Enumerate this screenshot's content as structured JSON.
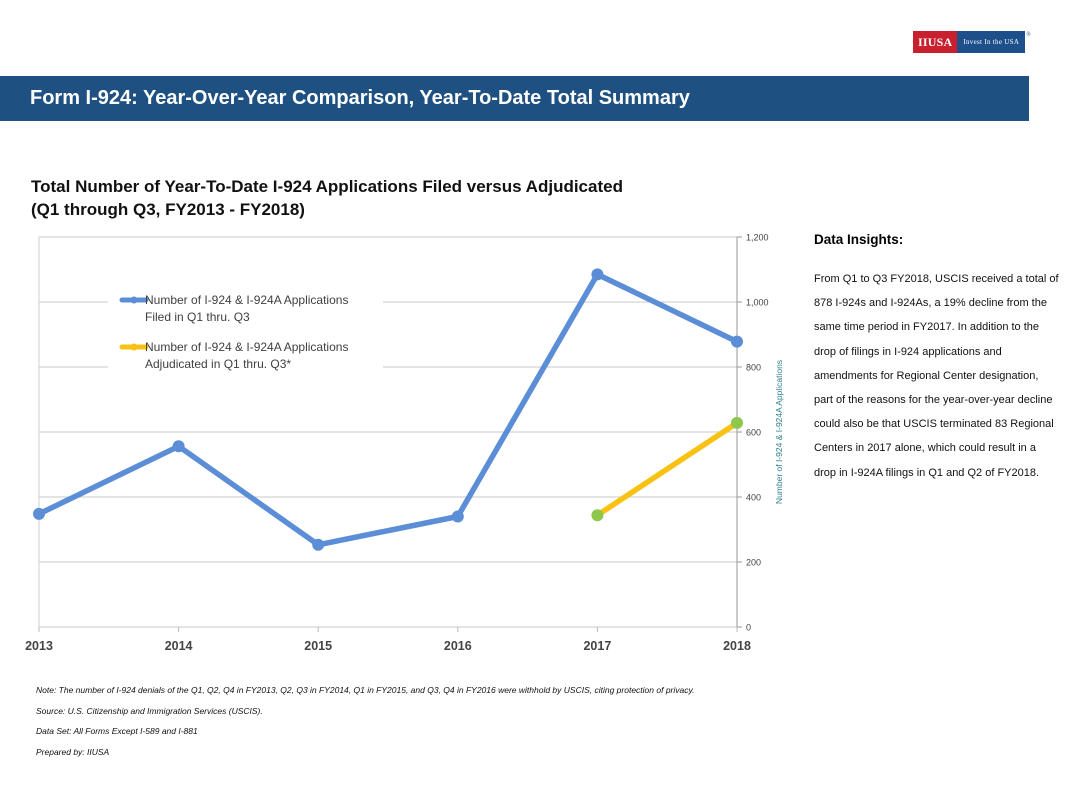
{
  "logo": {
    "mark": "IIUSA",
    "tagline": "Invest In the USA",
    "reg": "®"
  },
  "banner": {
    "title": "Form I-924: Year-Over-Year Comparison, Year-To-Date Total Summary"
  },
  "chart_heading": {
    "line1": "Total Number of Year-To-Date I-924 Applications Filed versus Adjudicated",
    "line2": "(Q1 through Q3, FY2013 - FY2018)"
  },
  "insights": {
    "heading": "Data Insights:",
    "body": "From Q1 to Q3 FY2018, USCIS received a total of 878 I-924s and I-924As, a 19% decline from the same time period in FY2017. In addition to the drop of filings in I-924 applications and amendments for Regional Center designation, part of the reasons for the year-over-year decline could also be that USCIS terminated 83 Regional Centers in 2017 alone, which could result in a drop in I-924A filings in Q1 and Q2 of FY2018."
  },
  "notes": {
    "note": "Note: The number of I-924 denials of the Q1, Q2, Q4 in FY2013, Q2, Q3 in FY2014, Q1 in FY2015, and Q3, Q4 in FY2016 were withhold by USCIS, citing protection of privacy.",
    "source": "Source: U.S. Citizenship and Immigration Services (USCIS).",
    "dataset": "Data Set: All Forms Except I-589 and I-881",
    "prepared": "Prepared by: IIUSA"
  },
  "chart_data": {
    "type": "line",
    "title": "Total Number of Year-To-Date I-924 Applications Filed versus Adjudicated (Q1 through Q3, FY2013 - FY2018)",
    "x": [
      "2013",
      "2014",
      "2015",
      "2016",
      "2017",
      "2018"
    ],
    "ylabel": "Number of I-924 & I-924A Applications",
    "ylim": [
      0,
      1200
    ],
    "yticks": [
      0,
      200,
      400,
      600,
      800,
      1000,
      1200
    ],
    "ytick_labels": [
      "0",
      "200",
      "400",
      "600",
      "800",
      "1,000",
      "1,200"
    ],
    "y_axis_side": "right",
    "grid": true,
    "legend_position": "upper-left",
    "series": [
      {
        "name": "Number of I-924 & I-924A Applications Filed in Q1 thru. Q3",
        "legend_lines": [
          "Number of I-924 & I-924A Applications",
          "Filed in Q1 thru. Q3"
        ],
        "color": "#5b8ed6",
        "values": [
          348,
          556,
          253,
          340,
          1085,
          878
        ]
      },
      {
        "name": "Number of I-924 & I-924A Applications Adjudicated in Q1 thru. Q3*",
        "legend_lines": [
          "Number of I-924 & I-924A Applications",
          "Adjudicated in Q1 thru. Q3*"
        ],
        "color": "#f8c214",
        "marker_color": "#8dc84c",
        "values": [
          null,
          null,
          null,
          null,
          344,
          628
        ]
      }
    ]
  }
}
